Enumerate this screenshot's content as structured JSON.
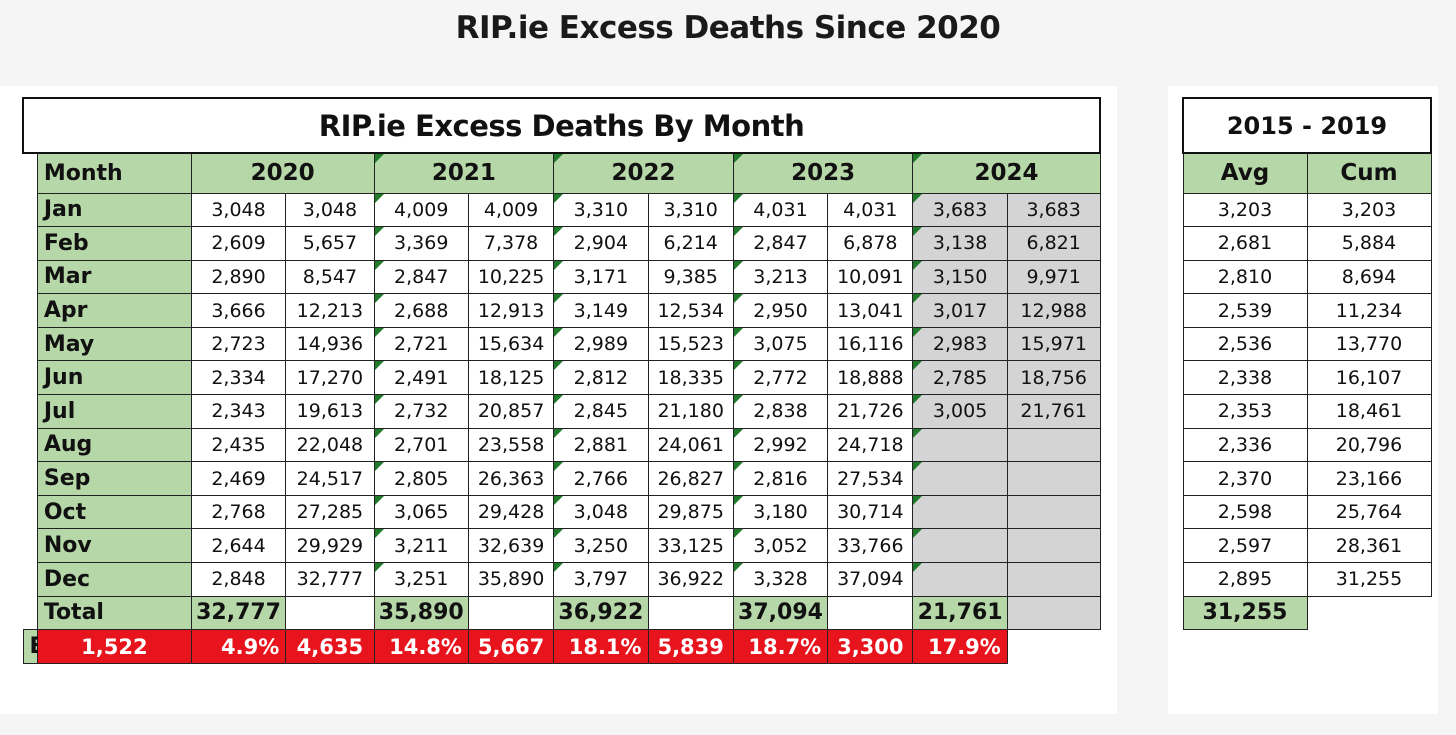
{
  "page_title": "RIP.ie Excess Deaths Since 2020",
  "main_table": {
    "title": "RIP.ie Excess Deaths By Month",
    "month_header": "Month",
    "years": [
      "2020",
      "2021",
      "2022",
      "2023",
      "2024"
    ],
    "months": [
      "Jan",
      "Feb",
      "Mar",
      "Apr",
      "May",
      "Jun",
      "Jul",
      "Aug",
      "Sep",
      "Oct",
      "Nov",
      "Dec"
    ],
    "values": {
      "2020": [
        [
          "3,048",
          "3,048"
        ],
        [
          "2,609",
          "5,657"
        ],
        [
          "2,890",
          "8,547"
        ],
        [
          "3,666",
          "12,213"
        ],
        [
          "2,723",
          "14,936"
        ],
        [
          "2,334",
          "17,270"
        ],
        [
          "2,343",
          "19,613"
        ],
        [
          "2,435",
          "22,048"
        ],
        [
          "2,469",
          "24,517"
        ],
        [
          "2,768",
          "27,285"
        ],
        [
          "2,644",
          "29,929"
        ],
        [
          "2,848",
          "32,777"
        ]
      ],
      "2021": [
        [
          "4,009",
          "4,009"
        ],
        [
          "3,369",
          "7,378"
        ],
        [
          "2,847",
          "10,225"
        ],
        [
          "2,688",
          "12,913"
        ],
        [
          "2,721",
          "15,634"
        ],
        [
          "2,491",
          "18,125"
        ],
        [
          "2,732",
          "20,857"
        ],
        [
          "2,701",
          "23,558"
        ],
        [
          "2,805",
          "26,363"
        ],
        [
          "3,065",
          "29,428"
        ],
        [
          "3,211",
          "32,639"
        ],
        [
          "3,251",
          "35,890"
        ]
      ],
      "2022": [
        [
          "3,310",
          "3,310"
        ],
        [
          "2,904",
          "6,214"
        ],
        [
          "3,171",
          "9,385"
        ],
        [
          "3,149",
          "12,534"
        ],
        [
          "2,989",
          "15,523"
        ],
        [
          "2,812",
          "18,335"
        ],
        [
          "2,845",
          "21,180"
        ],
        [
          "2,881",
          "24,061"
        ],
        [
          "2,766",
          "26,827"
        ],
        [
          "3,048",
          "29,875"
        ],
        [
          "3,250",
          "33,125"
        ],
        [
          "3,797",
          "36,922"
        ]
      ],
      "2023": [
        [
          "4,031",
          "4,031"
        ],
        [
          "2,847",
          "6,878"
        ],
        [
          "3,213",
          "10,091"
        ],
        [
          "2,950",
          "13,041"
        ],
        [
          "3,075",
          "16,116"
        ],
        [
          "2,772",
          "18,888"
        ],
        [
          "2,838",
          "21,726"
        ],
        [
          "2,992",
          "24,718"
        ],
        [
          "2,816",
          "27,534"
        ],
        [
          "3,180",
          "30,714"
        ],
        [
          "3,052",
          "33,766"
        ],
        [
          "3,328",
          "37,094"
        ]
      ],
      "2024": [
        [
          "3,683",
          "3,683"
        ],
        [
          "3,138",
          "6,821"
        ],
        [
          "3,150",
          "9,971"
        ],
        [
          "3,017",
          "12,988"
        ],
        [
          "2,983",
          "15,971"
        ],
        [
          "2,785",
          "18,756"
        ],
        [
          "3,005",
          "21,761"
        ],
        [
          "",
          ""
        ],
        [
          "",
          ""
        ],
        [
          "",
          ""
        ],
        [
          "",
          ""
        ],
        [
          "",
          ""
        ]
      ]
    },
    "total_label": "Total",
    "totals": {
      "2020": "32,777",
      "2021": "35,890",
      "2022": "36,922",
      "2023": "37,094",
      "2024": "21,761"
    },
    "excess_label": "Excess",
    "excess": {
      "2020": [
        "1,522",
        "4.9%"
      ],
      "2021": [
        "4,635",
        "14.8%"
      ],
      "2022": [
        "5,667",
        "18.1%"
      ],
      "2023": [
        "5,839",
        "18.7%"
      ],
      "2024": [
        "3,300",
        "17.9%"
      ]
    }
  },
  "baseline_table": {
    "title": "2015 - 2019",
    "headers": [
      "Avg",
      "Cum"
    ],
    "rows": [
      [
        "3,203",
        "3,203"
      ],
      [
        "2,681",
        "5,884"
      ],
      [
        "2,810",
        "8,694"
      ],
      [
        "2,539",
        "11,234"
      ],
      [
        "2,536",
        "13,770"
      ],
      [
        "2,338",
        "16,107"
      ],
      [
        "2,353",
        "18,461"
      ],
      [
        "2,336",
        "20,796"
      ],
      [
        "2,370",
        "23,166"
      ],
      [
        "2,598",
        "25,764"
      ],
      [
        "2,597",
        "28,361"
      ],
      [
        "2,895",
        "31,255"
      ]
    ],
    "total": "31,255"
  },
  "colors": {
    "header_green": "#b6d7a8",
    "excess_red": "#e8141d",
    "future_grey": "#d4d4d4"
  }
}
